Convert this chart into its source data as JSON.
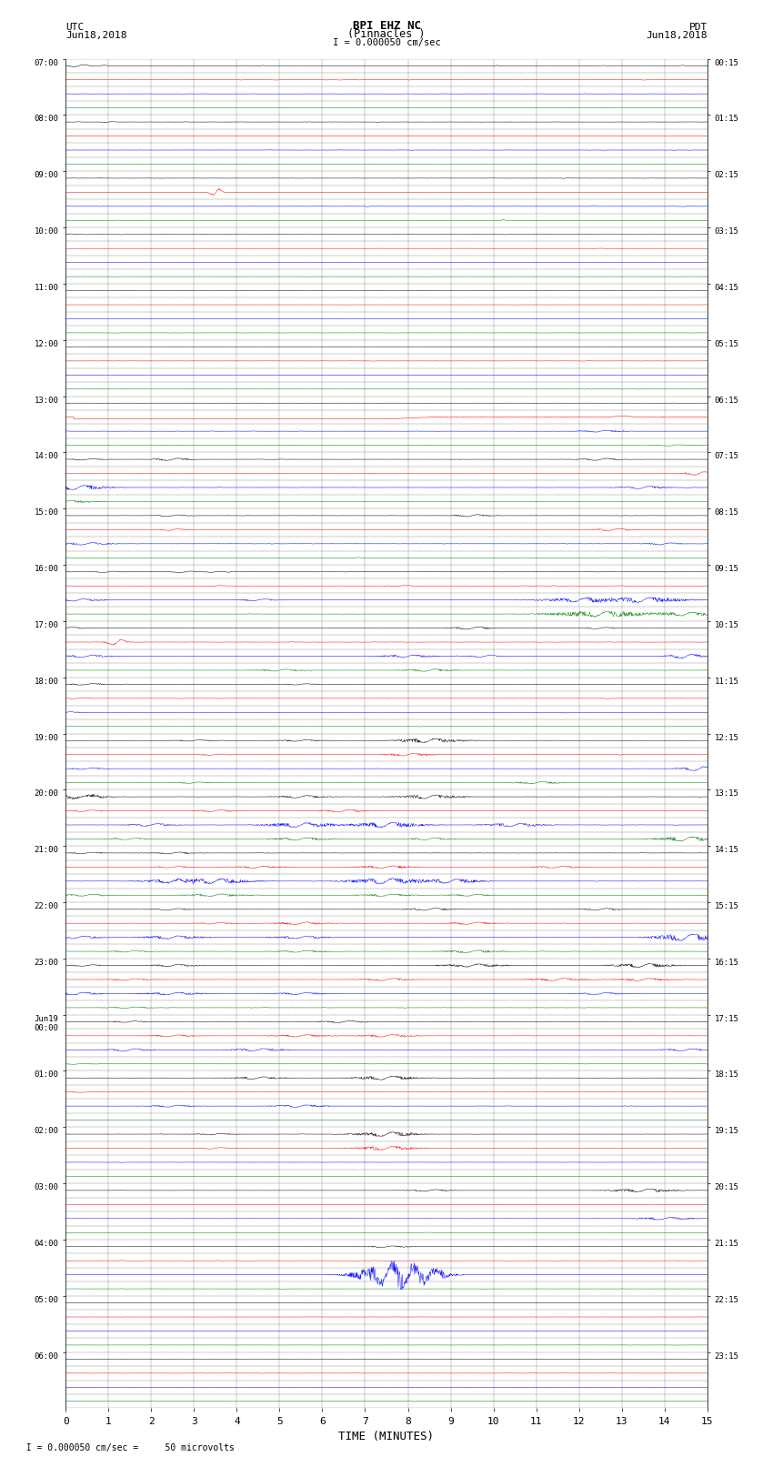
{
  "title_line1": "BPI EHZ NC",
  "title_line2": "(Pinnacles )",
  "scale_text": "I = 0.000050 cm/sec",
  "left_header_line1": "UTC",
  "left_header_line2": "Jun18,2018",
  "right_header_line1": "PDT",
  "right_header_line2": "Jun18,2018",
  "bottom_label": "TIME (MINUTES)",
  "bottom_note": "  I = 0.000050 cm/sec =     50 microvolts",
  "utc_labels": [
    "07:00",
    "",
    "",
    "",
    "08:00",
    "",
    "",
    "",
    "09:00",
    "",
    "",
    "",
    "10:00",
    "",
    "",
    "",
    "11:00",
    "",
    "",
    "",
    "12:00",
    "",
    "",
    "",
    "13:00",
    "",
    "",
    "",
    "14:00",
    "",
    "",
    "",
    "15:00",
    "",
    "",
    "",
    "16:00",
    "",
    "",
    "",
    "17:00",
    "",
    "",
    "",
    "18:00",
    "",
    "",
    "",
    "19:00",
    "",
    "",
    "",
    "20:00",
    "",
    "",
    "",
    "21:00",
    "",
    "",
    "",
    "22:00",
    "",
    "",
    "",
    "23:00",
    "",
    "",
    "",
    "Jun19\n00:00",
    "",
    "",
    "",
    "01:00",
    "",
    "",
    "",
    "02:00",
    "",
    "",
    "",
    "03:00",
    "",
    "",
    "",
    "04:00",
    "",
    "",
    "",
    "05:00",
    "",
    "",
    "",
    "06:00",
    "",
    "",
    ""
  ],
  "pdt_labels": [
    "00:15",
    "",
    "",
    "",
    "01:15",
    "",
    "",
    "",
    "02:15",
    "",
    "",
    "",
    "03:15",
    "",
    "",
    "",
    "04:15",
    "",
    "",
    "",
    "05:15",
    "",
    "",
    "",
    "06:15",
    "",
    "",
    "",
    "07:15",
    "",
    "",
    "",
    "08:15",
    "",
    "",
    "",
    "09:15",
    "",
    "",
    "",
    "10:15",
    "",
    "",
    "",
    "11:15",
    "",
    "",
    "",
    "12:15",
    "",
    "",
    "",
    "13:15",
    "",
    "",
    "",
    "14:15",
    "",
    "",
    "",
    "15:15",
    "",
    "",
    "",
    "16:15",
    "",
    "",
    "",
    "17:15",
    "",
    "",
    "",
    "18:15",
    "",
    "",
    "",
    "19:15",
    "",
    "",
    "",
    "20:15",
    "",
    "",
    "",
    "21:15",
    "",
    "",
    "",
    "22:15",
    "",
    "",
    "",
    "23:15",
    "",
    "",
    ""
  ],
  "n_rows": 96,
  "x_min": 0,
  "x_max": 15,
  "background_color": "#ffffff",
  "grid_color": "#888888",
  "trace_colors": [
    "black",
    "red",
    "blue",
    "green"
  ],
  "figsize": [
    8.5,
    16.13
  ],
  "dpi": 100
}
